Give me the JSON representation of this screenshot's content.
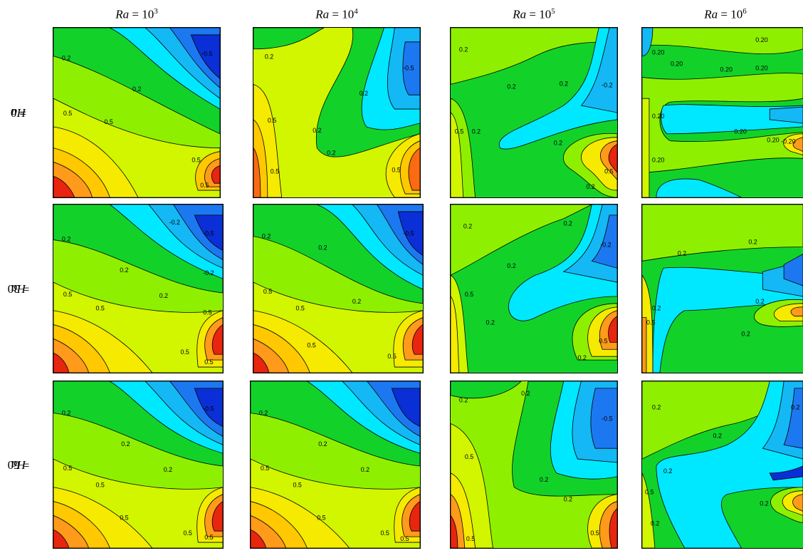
{
  "figure": {
    "column_headers": [
      {
        "var": "Ra",
        "eq": " = 10",
        "exp": "3"
      },
      {
        "var": "Ra",
        "eq": " = 10",
        "exp": "4"
      },
      {
        "var": "Ra",
        "eq": " = 10",
        "exp": "5"
      },
      {
        "var": "Ra",
        "eq": " = 10",
        "exp": "6"
      }
    ],
    "row_headers": [
      {
        "var": "Ha",
        "eq": "= 0"
      },
      {
        "var": "Ha",
        "eq": "= 30"
      },
      {
        "var": "Ha",
        "eq": "= 60"
      }
    ],
    "contour_labels": {
      "a": "0.2",
      "b": "0.5",
      "c": "-0.2",
      "d": "-0.5",
      "e": "0.20",
      "f": "-0.20"
    },
    "colors": {
      "dark_blue": "#0a2fd6",
      "blue": "#1c78f0",
      "light_blue": "#14b8f5",
      "cyan": "#00e8ff",
      "green": "#12d22a",
      "lime": "#8ef000",
      "yellow_green": "#d2f500",
      "yellow": "#f5ea00",
      "gold": "#ffc800",
      "orange": "#ff9a1a",
      "dark_orange": "#f96a12",
      "red": "#e8250e"
    }
  }
}
